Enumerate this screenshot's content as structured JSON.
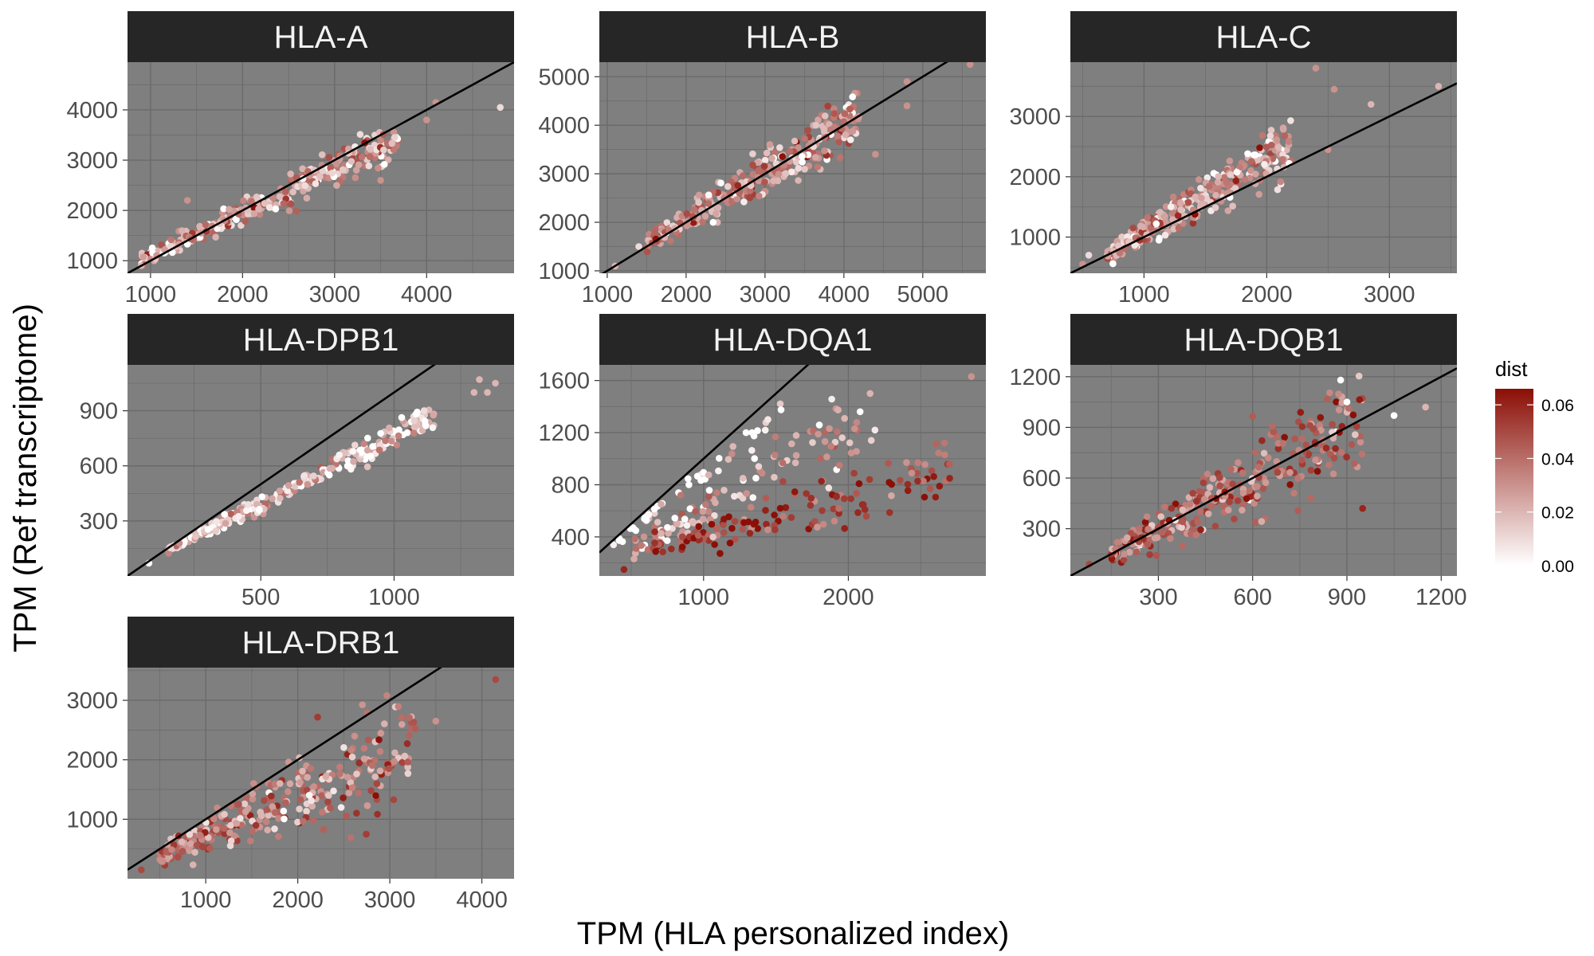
{
  "figure": {
    "xlabel": "TPM (HLA personalized index)",
    "ylabel": "TPM (Ref transcriptome)"
  },
  "legend": {
    "title": "dist",
    "ticks": [
      "0.00",
      "0.02",
      "0.04",
      "0.06"
    ],
    "colors": {
      "low": "#ffffff",
      "high": "#8b0f06"
    }
  },
  "style": {
    "panel_bg": "#7f7f7f",
    "grid_color": "#6a6a6a",
    "strip_bg": "#262626",
    "ref_line": "#000000"
  },
  "chart_data": [
    {
      "type": "scatter",
      "title": "HLA-A",
      "xlim": [
        750,
        4950
      ],
      "ylim": [
        750,
        4950
      ],
      "x_ticks": [
        1000,
        2000,
        3000,
        4000
      ],
      "y_ticks": [
        1000,
        2000,
        3000,
        4000
      ],
      "x_tick_labels": [
        "1000",
        "2000",
        "3000",
        "4000"
      ],
      "y_tick_labels": [
        "1000",
        "2000",
        "3000",
        "4000"
      ],
      "reference_line": {
        "slope": 1,
        "intercept": 0
      },
      "trend": {
        "slope": 0.87,
        "intercept": 230,
        "scatter": 0.06,
        "x_min": 900,
        "x_max": 3700,
        "dist_mean": 0.025
      },
      "points": [
        [
          4800,
          4050,
          0.01
        ],
        [
          4100,
          4150,
          0.03
        ],
        [
          4000,
          3800,
          0.03
        ],
        [
          3500,
          2600,
          0.03
        ],
        [
          1400,
          2200,
          0.03
        ],
        [
          900,
          900,
          0.02
        ]
      ]
    },
    {
      "type": "scatter",
      "title": "HLA-B",
      "xlim": [
        900,
        5800
      ],
      "ylim": [
        950,
        5300
      ],
      "x_ticks": [
        1000,
        2000,
        3000,
        4000,
        5000
      ],
      "y_ticks": [
        1000,
        2000,
        3000,
        4000,
        5000
      ],
      "x_tick_labels": [
        "1000",
        "2000",
        "3000",
        "4000",
        "5000"
      ],
      "y_tick_labels": [
        "1000",
        "2000",
        "3000",
        "4000",
        "5000"
      ],
      "reference_line": {
        "slope": 1,
        "intercept": 0
      },
      "trend": {
        "slope": 0.95,
        "intercept": 150,
        "scatter": 0.07,
        "x_min": 1500,
        "x_max": 4200,
        "dist_mean": 0.03
      },
      "points": [
        [
          5600,
          5250,
          0.03
        ],
        [
          4800,
          4900,
          0.03
        ],
        [
          4800,
          4400,
          0.03
        ],
        [
          4400,
          3400,
          0.03
        ],
        [
          1100,
          1100,
          0.02
        ],
        [
          1400,
          1500,
          0.01
        ]
      ]
    },
    {
      "type": "scatter",
      "title": "HLA-C",
      "xlim": [
        400,
        3550
      ],
      "ylim": [
        400,
        3900
      ],
      "x_ticks": [
        1000,
        2000,
        3000
      ],
      "y_ticks": [
        1000,
        2000,
        3000
      ],
      "x_tick_labels": [
        "1000",
        "2000",
        "3000"
      ],
      "y_tick_labels": [
        "1000",
        "2000",
        "3000"
      ],
      "reference_line": {
        "slope": 1,
        "intercept": 0
      },
      "trend": {
        "slope": 1.2,
        "intercept": -120,
        "scatter": 0.1,
        "x_min": 700,
        "x_max": 2200,
        "dist_mean": 0.025
      },
      "points": [
        [
          3400,
          3500,
          0.02
        ],
        [
          2850,
          3200,
          0.02
        ],
        [
          2550,
          3450,
          0.03
        ],
        [
          2400,
          3800,
          0.03
        ],
        [
          2500,
          2450,
          0.03
        ],
        [
          550,
          700,
          0.01
        ],
        [
          500,
          550,
          0.03
        ]
      ]
    },
    {
      "type": "scatter",
      "title": "HLA-DPB1",
      "xlim": [
        0,
        1450
      ],
      "ylim": [
        0,
        1150
      ],
      "x_ticks": [
        500,
        1000
      ],
      "y_ticks": [
        300,
        600,
        900
      ],
      "x_tick_labels": [
        "500",
        "1000"
      ],
      "y_tick_labels": [
        "300",
        "600",
        "900"
      ],
      "reference_line": {
        "slope": 1,
        "intercept": 0
      },
      "trend": {
        "slope": 0.73,
        "intercept": 30,
        "scatter": 0.05,
        "x_min": 150,
        "x_max": 1150,
        "dist_mean": 0.01
      },
      "points": [
        [
          1320,
          1070,
          0.02
        ],
        [
          1350,
          1000,
          0.02
        ],
        [
          1380,
          1050,
          0.02
        ],
        [
          1300,
          1000,
          0.02
        ],
        [
          80,
          70,
          0.0
        ]
      ]
    },
    {
      "type": "scatter",
      "title": "HLA-DQA1",
      "xlim": [
        280,
        2950
      ],
      "ylim": [
        100,
        1720
      ],
      "x_ticks": [
        1000,
        2000
      ],
      "y_ticks": [
        400,
        800,
        1200,
        1600
      ],
      "x_tick_labels": [
        "1000",
        "2000"
      ],
      "y_tick_labels": [
        "400",
        "800",
        "1200",
        "1600"
      ],
      "reference_line": {
        "slope": 1,
        "intercept": 0
      },
      "bands": [
        {
          "slope": 0.9,
          "intercept": 0,
          "scatter": 0.04,
          "x_min": 350,
          "x_max": 1550,
          "dist_mean": 0.0,
          "count": 45
        },
        {
          "slope": 0.6,
          "intercept": 0,
          "scatter": 0.12,
          "x_min": 500,
          "x_max": 2200,
          "dist_mean": 0.025,
          "count": 120
        },
        {
          "slope": 0.3,
          "intercept": 120,
          "scatter": 0.15,
          "x_min": 600,
          "x_max": 2700,
          "dist_mean": 0.055,
          "count": 130
        }
      ],
      "points": [
        [
          2850,
          1630,
          0.03
        ],
        [
          2700,
          850,
          0.06
        ],
        [
          450,
          150,
          0.06
        ]
      ]
    },
    {
      "type": "scatter",
      "title": "HLA-DQB1",
      "xlim": [
        20,
        1250
      ],
      "ylim": [
        20,
        1270
      ],
      "x_ticks": [
        300,
        600,
        900,
        1200
      ],
      "y_ticks": [
        300,
        600,
        900,
        1200
      ],
      "x_tick_labels": [
        "300",
        "600",
        "900",
        "1200"
      ],
      "y_tick_labels": [
        "300",
        "600",
        "900",
        "1200"
      ],
      "reference_line": {
        "slope": 1,
        "intercept": 0
      },
      "trend": {
        "slope": 0.98,
        "intercept": 0,
        "scatter": 0.18,
        "x_min": 150,
        "x_max": 950,
        "dist_mean": 0.04
      },
      "points": [
        [
          880,
          1180,
          0.0
        ],
        [
          900,
          1050,
          0.0
        ],
        [
          1050,
          970,
          0.0
        ],
        [
          1150,
          1020,
          0.02
        ],
        [
          950,
          420,
          0.06
        ],
        [
          80,
          90,
          0.05
        ]
      ]
    },
    {
      "type": "scatter",
      "title": "HLA-DRB1",
      "xlim": [
        150,
        4350
      ],
      "ylim": [
        0,
        3550
      ],
      "x_ticks": [
        1000,
        2000,
        3000,
        4000
      ],
      "y_ticks": [
        1000,
        2000,
        3000
      ],
      "x_tick_labels": [
        "1000",
        "2000",
        "3000",
        "4000"
      ],
      "y_tick_labels": [
        "1000",
        "2000",
        "3000"
      ],
      "reference_line": {
        "slope": 1,
        "intercept": 0
      },
      "trend": {
        "slope": 0.68,
        "intercept": 40,
        "scatter": 0.2,
        "x_min": 500,
        "x_max": 3300,
        "dist_mean": 0.035
      },
      "points": [
        [
          4150,
          3350,
          0.05
        ],
        [
          3500,
          2650,
          0.03
        ],
        [
          300,
          150,
          0.05
        ]
      ]
    }
  ]
}
